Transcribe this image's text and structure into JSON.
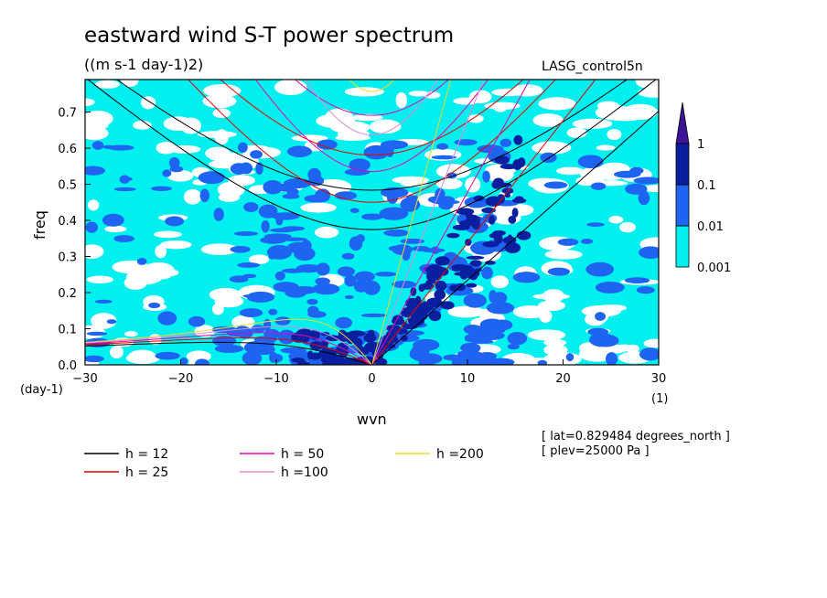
{
  "chart_data": {
    "type": "heatmap",
    "title": "eastward wind S-T power spectrum",
    "subtitle": "((m s-1 day-1)2)",
    "experiment": "LASG_control5n",
    "xlabel": "wvn",
    "xunit": "(1)",
    "ylabel": "freq",
    "yunit": "(day-1)",
    "xlim": [
      -30,
      30
    ],
    "ylim": [
      0,
      0.79
    ],
    "xticks": [
      -30,
      -20,
      -10,
      0,
      10,
      20,
      30
    ],
    "yticks": [
      0.0,
      0.1,
      0.2,
      0.3,
      0.4,
      0.5,
      0.6,
      0.7
    ],
    "contour_levels": [
      0.001,
      0.01,
      0.1,
      1
    ],
    "colorbar_labels": [
      "1",
      "0.1",
      "0.01",
      "0.001"
    ],
    "colorbar_colors": [
      "#00f0f0",
      "#1e64f0",
      "#0a1ea0",
      "#3c1496"
    ],
    "curves": [
      {
        "name": "h = 12",
        "h": 12,
        "color": "#000000"
      },
      {
        "name": "h = 25",
        "h": 25,
        "color": "#e60000"
      },
      {
        "name": "h = 50",
        "h": 50,
        "color": "#e600b4"
      },
      {
        "name": "h =100",
        "h": 100,
        "color": "#dc8cdc"
      },
      {
        "name": "h =200",
        "h": 200,
        "color": "#e6dc32"
      }
    ],
    "annotations": [
      "[ lat=0.829484 degrees_north ]",
      "[ plev=25000 Pa ]"
    ]
  }
}
